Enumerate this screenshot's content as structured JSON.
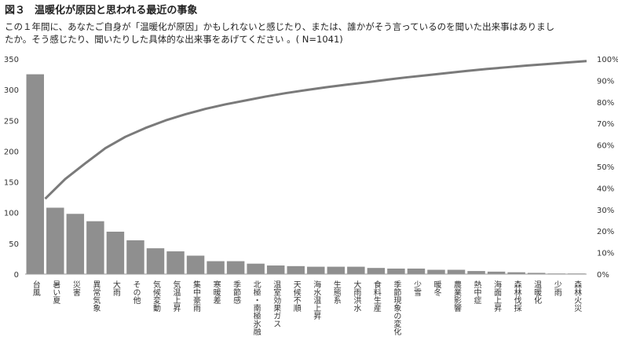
{
  "figure": {
    "number": "図３",
    "title": "温暖化が原因と思われる最近の事象"
  },
  "caption": {
    "line1": "この１年間に、あなたご自身が「温暖化が原因」かもしれないと感じたり、または、誰かがそう言っているのを聞いた出来事はありまし",
    "line2": "たか。そう感じたり、聞いたりした具体的な出来事をあげてください 。( N=1041)"
  },
  "colors": {
    "bar": "#8f8f8f",
    "line": "#7a7a7a",
    "axis": "#999999"
  },
  "chart_data": {
    "type": "bar",
    "title": "",
    "xlabel": "",
    "ylabel": "",
    "ylim": [
      0,
      350
    ],
    "y2lim": [
      0,
      100
    ],
    "yticks": [
      "0",
      "50",
      "100",
      "150",
      "200",
      "250",
      "300",
      "350"
    ],
    "y2ticks": [
      "0%",
      "10%",
      "20%",
      "30%",
      "40%",
      "50%",
      "60%",
      "70%",
      "80%",
      "90%",
      "100%"
    ],
    "grid": false,
    "categories": [
      "台風",
      "暑い夏",
      "災害",
      "異常気象",
      "大雨",
      "その他",
      "気候変動",
      "気温上昇",
      "集中豪雨",
      "寒暖差",
      "季節感",
      "北極・南極氷融",
      "温室効果ガス",
      "天候不順",
      "海水温上昇",
      "生態系",
      "大雨洪水",
      "食料生産",
      "季節現象の変化",
      "少雪",
      "暖冬",
      "農業影響",
      "熱中症",
      "海面上昇",
      "森林伐採",
      "温暖化",
      "少雨",
      "森林火災"
    ],
    "series": [
      {
        "type": "bar",
        "values": [
          325,
          108,
          98,
          86,
          69,
          55,
          42,
          37,
          30,
          21,
          21,
          17,
          14,
          13,
          12,
          12,
          12,
          10,
          9,
          9,
          7,
          7,
          5,
          4,
          3,
          2,
          1,
          1
        ]
      },
      {
        "type": "line",
        "axis": "right",
        "values": [
          35,
          44.2,
          51.5,
          58.5,
          63.8,
          67.9,
          71.4,
          74.3,
          76.8,
          78.9,
          80.7,
          82.5,
          84.1,
          85.5,
          86.8,
          88.0,
          89.1,
          90.3,
          91.4,
          92.4,
          93.4,
          94.4,
          95.3,
          96.1,
          96.9,
          97.6,
          98.3,
          99.0
        ]
      }
    ]
  }
}
